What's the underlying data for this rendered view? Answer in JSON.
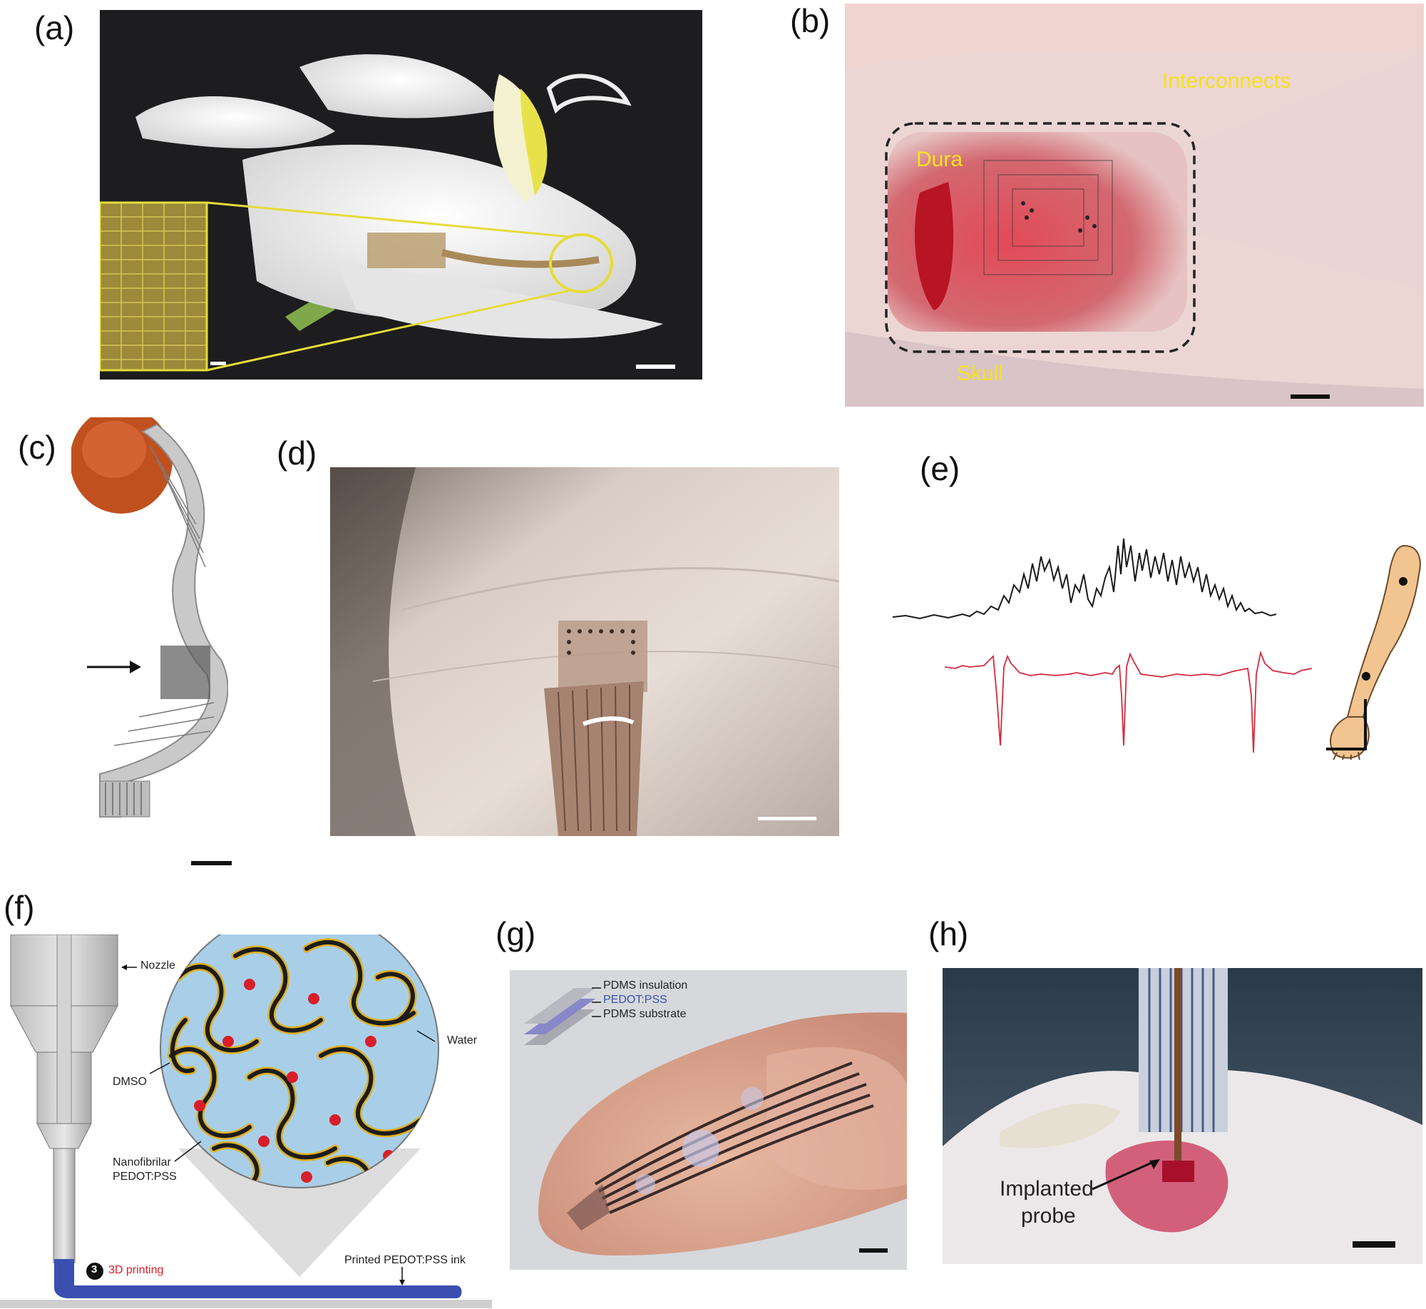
{
  "panels": {
    "a": {
      "label": "(a)"
    },
    "b": {
      "label": "(b)",
      "labels": {
        "interconnects": "Interconnects",
        "dura": "Dura",
        "skull": "Skull"
      }
    },
    "c": {
      "label": "(c)"
    },
    "d": {
      "label": "(d)"
    },
    "e": {
      "label": "(e)"
    },
    "f": {
      "label": "(f)",
      "labels": {
        "nozzle": "Nozzle",
        "water": "Water",
        "dmso": "DMSO",
        "nanofibrilar_1": "Nanofibrilar",
        "nanofibrilar_2": "PEDOT:PSS",
        "step_number": "3",
        "printing": "3D printing",
        "printed_ink": "Printed PEDOT:PSS ink"
      }
    },
    "g": {
      "label": "(g)",
      "labels": {
        "insulation": "PDMS insulation",
        "pedot": "PEDOT:PSS",
        "substrate": "PDMS substrate"
      }
    },
    "h": {
      "label": "(h)",
      "labels": {
        "probe_1": "Implanted",
        "probe_2": "probe"
      }
    }
  },
  "colors": {
    "yellow_label": "#f5e21a",
    "red_trace": "#d42a3c",
    "black_trace": "#1a1a1a",
    "pedot_blue": "#3a4fb0",
    "water_blue": "#a9cfe8",
    "fiber": "#1c1c1c",
    "fiber_edge": "#e0b020",
    "dmso_dot": "#d81e2a",
    "printing_red": "#d81e2a"
  }
}
